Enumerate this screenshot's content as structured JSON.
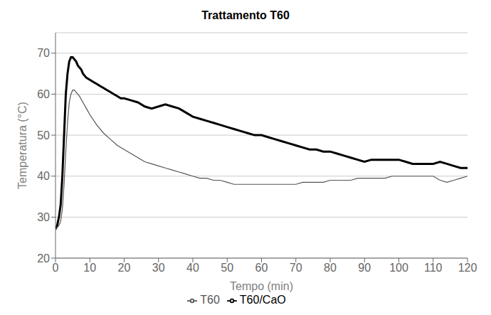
{
  "chart_data": {
    "type": "line",
    "title": "Trattamento T60",
    "x_label": "Tempo (min)",
    "y_label": "Temperatura (°C)",
    "xlim": [
      0,
      120
    ],
    "ylim": [
      20,
      75
    ],
    "xticks": [
      0,
      10,
      20,
      30,
      40,
      50,
      60,
      70,
      80,
      90,
      100,
      110,
      120
    ],
    "yticks": [
      20,
      30,
      40,
      50,
      60,
      70
    ],
    "grid": "y",
    "legend": "bottom",
    "series": [
      {
        "name": "T60/CaO",
        "color": "#000000",
        "x": [
          0,
          0.5,
          1,
          1.5,
          2,
          2.5,
          3,
          3.5,
          4,
          4.5,
          5,
          5.5,
          6,
          6.5,
          7,
          7.5,
          8,
          9,
          10,
          11,
          12,
          13,
          14,
          15,
          16,
          17,
          18,
          19,
          20,
          22,
          24,
          26,
          28,
          30,
          32,
          34,
          36,
          38,
          40,
          42,
          44,
          46,
          48,
          50,
          52,
          54,
          56,
          58,
          60,
          62,
          64,
          66,
          68,
          70,
          72,
          74,
          76,
          78,
          80,
          82,
          84,
          86,
          88,
          90,
          92,
          94,
          96,
          98,
          100,
          102,
          104,
          106,
          108,
          110,
          112,
          114,
          116,
          118,
          120
        ],
        "values": [
          27,
          28,
          30,
          33,
          40,
          50,
          60,
          65,
          68,
          69,
          69,
          68.5,
          68,
          67,
          66.5,
          66,
          65,
          64,
          63.5,
          63,
          62.5,
          62,
          61.5,
          61,
          60.5,
          60,
          59.5,
          59,
          59,
          58.5,
          58,
          57,
          56.5,
          57,
          57.5,
          57,
          56.5,
          55.5,
          54.5,
          54,
          53.5,
          53,
          52.5,
          52,
          51.5,
          51,
          50.5,
          50,
          50,
          49.5,
          49,
          48.5,
          48,
          47.5,
          47,
          46.5,
          46.5,
          46,
          46,
          45.5,
          45,
          44.5,
          44,
          43.5,
          44,
          44,
          44,
          44,
          44,
          43.5,
          43,
          43,
          43,
          43,
          43.5,
          43,
          42.5,
          42,
          42
        ]
      },
      {
        "name": "T60",
        "color": "#555555",
        "x": [
          0,
          0.5,
          1,
          1.5,
          2,
          2.5,
          3,
          3.5,
          4,
          4.5,
          5,
          5.5,
          6,
          7,
          8,
          9,
          10,
          12,
          14,
          16,
          18,
          20,
          22,
          24,
          26,
          28,
          30,
          32,
          34,
          36,
          38,
          40,
          42,
          44,
          46,
          48,
          50,
          52,
          54,
          56,
          58,
          60,
          62,
          64,
          66,
          68,
          70,
          72,
          74,
          76,
          78,
          80,
          82,
          84,
          86,
          88,
          90,
          92,
          94,
          96,
          98,
          100,
          102,
          104,
          106,
          108,
          110,
          112,
          114,
          116,
          118,
          120
        ],
        "values": [
          27,
          27.5,
          28,
          29,
          32,
          38,
          46,
          53,
          58,
          60,
          61,
          61,
          60.5,
          59.5,
          58,
          56.5,
          55,
          52.5,
          50.5,
          49,
          47.5,
          46.5,
          45.5,
          44.5,
          43.5,
          43,
          42.5,
          42,
          41.5,
          41,
          40.5,
          40,
          39.5,
          39.5,
          39,
          39,
          38.5,
          38,
          38,
          38,
          38,
          38,
          38,
          38,
          38,
          38,
          38,
          38.5,
          38.5,
          38.5,
          38.5,
          39,
          39,
          39,
          39,
          39.5,
          39.5,
          39.5,
          39.5,
          39.5,
          40,
          40,
          40,
          40,
          40,
          40,
          40,
          39,
          38.5,
          39,
          39.5,
          40
        ]
      }
    ]
  }
}
